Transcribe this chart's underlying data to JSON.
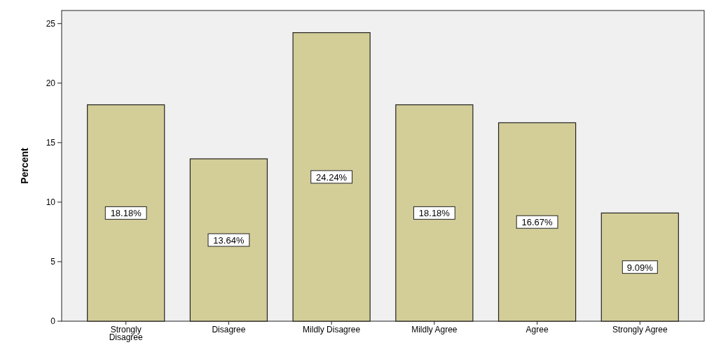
{
  "chart_data": {
    "type": "bar",
    "ylabel": "Percent",
    "categories": [
      "Strongly Disagree",
      "Disagree",
      "Mildly Disagree",
      "Mildly Agree",
      "Agree",
      "Strongly Agree"
    ],
    "values": [
      18.18,
      13.64,
      24.24,
      18.18,
      16.67,
      9.09
    ],
    "value_labels": [
      "18.18%",
      "13.64%",
      "24.24%",
      "18.18%",
      "16.67%",
      "9.09%"
    ],
    "color": "#d3ce98",
    "ylim": [
      0,
      26.1
    ],
    "yticks": [
      0,
      5,
      10,
      15,
      20,
      25
    ],
    "grid": false
  }
}
